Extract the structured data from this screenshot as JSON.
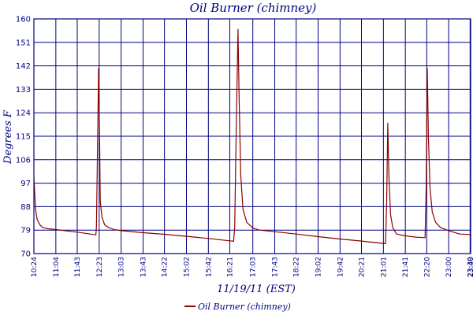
{
  "chart_data": {
    "type": "line",
    "title": "Oil Burner (chimney)",
    "xlabel": "11/19/11 (EST)",
    "ylabel": "Degrees F",
    "ylim": [
      70,
      160
    ],
    "yticks": [
      70,
      79,
      88,
      97,
      106,
      115,
      124,
      133,
      142,
      151,
      160
    ],
    "xlim": [
      "10:24",
      "23:40"
    ],
    "xticks": [
      "10:24",
      "11:04",
      "11:43",
      "12:23",
      "13:03",
      "13:43",
      "14:22",
      "15:02",
      "15:42",
      "16:21",
      "17:03",
      "17:43",
      "18:22",
      "19:02",
      "19:42",
      "20:21",
      "21:01",
      "21:41",
      "22:20",
      "23:00",
      "23:39",
      "23:40"
    ],
    "grid": true,
    "legend": "bottom",
    "colors": {
      "series": "#8b0000",
      "axes": "#000080"
    },
    "series": [
      {
        "name": "Oil Burner (chimney)",
        "points": [
          [
            "10:24",
            99
          ],
          [
            "10:27",
            87
          ],
          [
            "10:30",
            83
          ],
          [
            "10:35",
            81
          ],
          [
            "10:40",
            80
          ],
          [
            "10:50",
            79.5
          ],
          [
            "11:04",
            79.2
          ],
          [
            "11:43",
            78.2
          ],
          [
            "12:17",
            77.2
          ],
          [
            "12:18",
            80
          ],
          [
            "12:20",
            110
          ],
          [
            "12:22",
            141
          ],
          [
            "12:24",
            110
          ],
          [
            "12:25",
            90
          ],
          [
            "12:28",
            84
          ],
          [
            "12:33",
            81
          ],
          [
            "12:40",
            80
          ],
          [
            "12:50",
            79.2
          ],
          [
            "13:03",
            78.8
          ],
          [
            "13:43",
            78
          ],
          [
            "14:22",
            77.4
          ],
          [
            "15:02",
            76.6
          ],
          [
            "15:42",
            75.8
          ],
          [
            "16:21",
            74.9
          ],
          [
            "16:28",
            74.7
          ],
          [
            "16:30",
            80
          ],
          [
            "16:33",
            120
          ],
          [
            "16:36",
            156
          ],
          [
            "16:38",
            130
          ],
          [
            "16:41",
            100
          ],
          [
            "16:45",
            87
          ],
          [
            "16:52",
            82
          ],
          [
            "17:03",
            79.8
          ],
          [
            "17:15",
            79
          ],
          [
            "17:43",
            78.4
          ],
          [
            "18:22",
            77.5
          ],
          [
            "19:02",
            76.5
          ],
          [
            "19:42",
            75.6
          ],
          [
            "20:21",
            74.8
          ],
          [
            "21:01",
            73.9
          ],
          [
            "21:05",
            73.8
          ],
          [
            "21:07",
            90
          ],
          [
            "21:09",
            120
          ],
          [
            "21:11",
            100
          ],
          [
            "21:14",
            85
          ],
          [
            "21:18",
            80
          ],
          [
            "21:25",
            77.5
          ],
          [
            "21:41",
            76.8
          ],
          [
            "22:00",
            76.3
          ],
          [
            "22:17",
            76.1
          ],
          [
            "22:19",
            95
          ],
          [
            "22:21",
            141
          ],
          [
            "22:23",
            115
          ],
          [
            "22:26",
            95
          ],
          [
            "22:30",
            86
          ],
          [
            "22:36",
            82
          ],
          [
            "22:45",
            80
          ],
          [
            "23:00",
            78.8
          ],
          [
            "23:20",
            77.5
          ],
          [
            "23:39",
            77.3
          ]
        ]
      }
    ]
  }
}
